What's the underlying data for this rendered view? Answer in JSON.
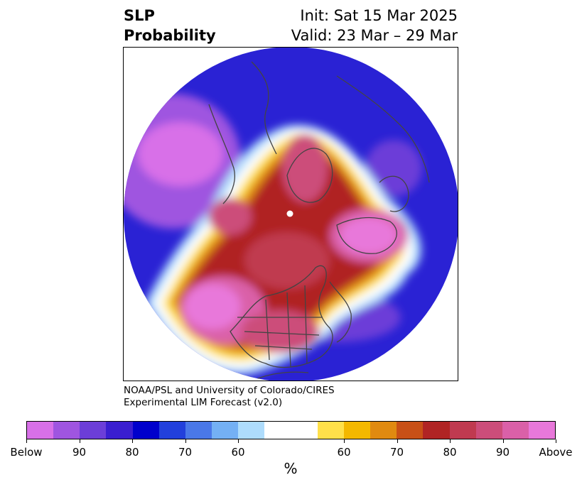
{
  "header": {
    "title_line1": "SLP",
    "title_line2": "Probability",
    "init": "Init: Sat 15 Mar 2025",
    "valid": "Valid: 23 Mar – 29 Mar"
  },
  "credit": {
    "line1": "NOAA/PSL and University of Colorado/CIRES",
    "line2": "Experimental LIM Forecast (v2.0)"
  },
  "colorbar": {
    "unit": "%",
    "colors": [
      "#d870e8",
      "#9f55e0",
      "#6c3ed8",
      "#3a1ed0",
      "#0000cc",
      "#2240dc",
      "#4a78e8",
      "#74b0f4",
      "#aedcfc",
      "#ffffff",
      "#ffffff",
      "#ffe04a",
      "#f4b800",
      "#e08a10",
      "#c85016",
      "#b02424",
      "#c03a50",
      "#cc4d7a",
      "#da60a8",
      "#e878da"
    ],
    "tick_labels": [
      "Below",
      "90",
      "80",
      "70",
      "60",
      "60",
      "70",
      "80",
      "90",
      "Above"
    ]
  },
  "map": {
    "projection": "north-polar-stereographic",
    "colors": {
      "below_strong": "#d870e8",
      "below_mid": "#0000cc",
      "below_weak": "#aedcfc",
      "neutral": "#ffffff",
      "above_weak": "#ffe04a",
      "above_mid": "#b02424",
      "above_strong": "#e878da",
      "coastline": "#444444"
    }
  }
}
